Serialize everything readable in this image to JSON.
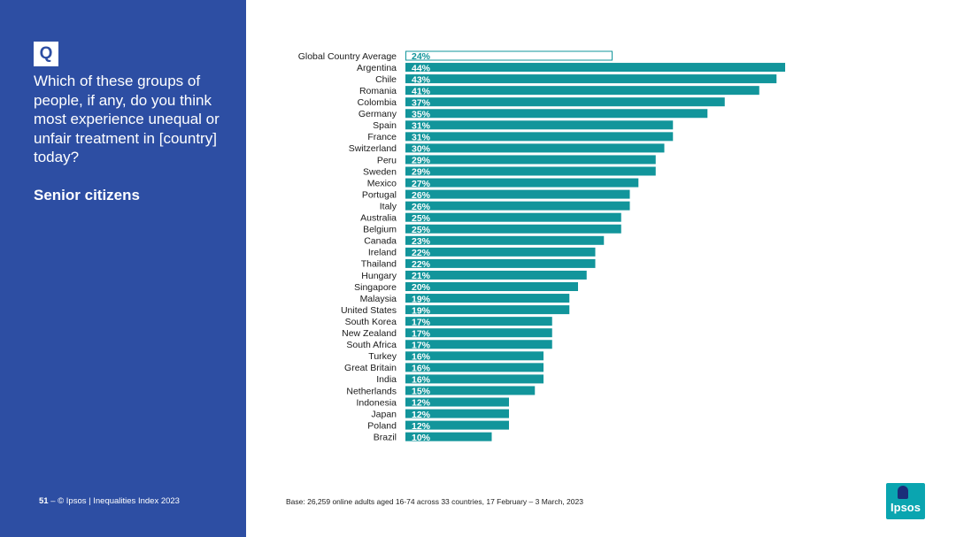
{
  "sidebar": {
    "q_label": "Q",
    "question": "Which of these groups of people, if any, do you think most experience unequal or unfair treatment in [country] today?",
    "topic": "Senior citizens",
    "page_number": "51",
    "separator": "–",
    "footer": "© Ipsos | Inequalities Index 2023"
  },
  "base_note": "Base: 26,259 online adults aged 16-74 across 33 countries, 17 February – 3 March, 2023",
  "logo": {
    "text": "Ipsos"
  },
  "colors": {
    "sidebar": "#2d4ea3",
    "bar": "#12959b",
    "average_outline": "#12959b"
  },
  "chart_data": {
    "type": "bar",
    "orientation": "horizontal",
    "title": "Senior citizens",
    "categories": [
      "Global Country Average",
      "Argentina",
      "Chile",
      "Romania",
      "Colombia",
      "Germany",
      "Spain",
      "France",
      "Switzerland",
      "Peru",
      "Sweden",
      "Mexico",
      "Portugal",
      "Italy",
      "Australia",
      "Belgium",
      "Canada",
      "Ireland",
      "Thailand",
      "Hungary",
      "Singapore",
      "Malaysia",
      "United States",
      "South Korea",
      "New Zealand",
      "South Africa",
      "Turkey",
      "Great Britain",
      "India",
      "Netherlands",
      "Indonesia",
      "Japan",
      "Poland",
      "Brazil"
    ],
    "values": [
      24,
      44,
      43,
      41,
      37,
      35,
      31,
      31,
      30,
      29,
      29,
      27,
      26,
      26,
      25,
      25,
      23,
      22,
      22,
      21,
      20,
      19,
      19,
      17,
      17,
      17,
      16,
      16,
      16,
      15,
      12,
      12,
      12,
      10
    ],
    "labels": [
      "24%",
      "44%",
      "43%",
      "41%",
      "37%",
      "35%",
      "31%",
      "31%",
      "30%",
      "29%",
      "29%",
      "27%",
      "26%",
      "26%",
      "25%",
      "25%",
      "23%",
      "22%",
      "22%",
      "21%",
      "20%",
      "19%",
      "19%",
      "17%",
      "17%",
      "17%",
      "16%",
      "16%",
      "16%",
      "15%",
      "12%",
      "12%",
      "12%",
      "10%"
    ],
    "xlim": [
      0,
      44
    ],
    "unit": "%"
  }
}
